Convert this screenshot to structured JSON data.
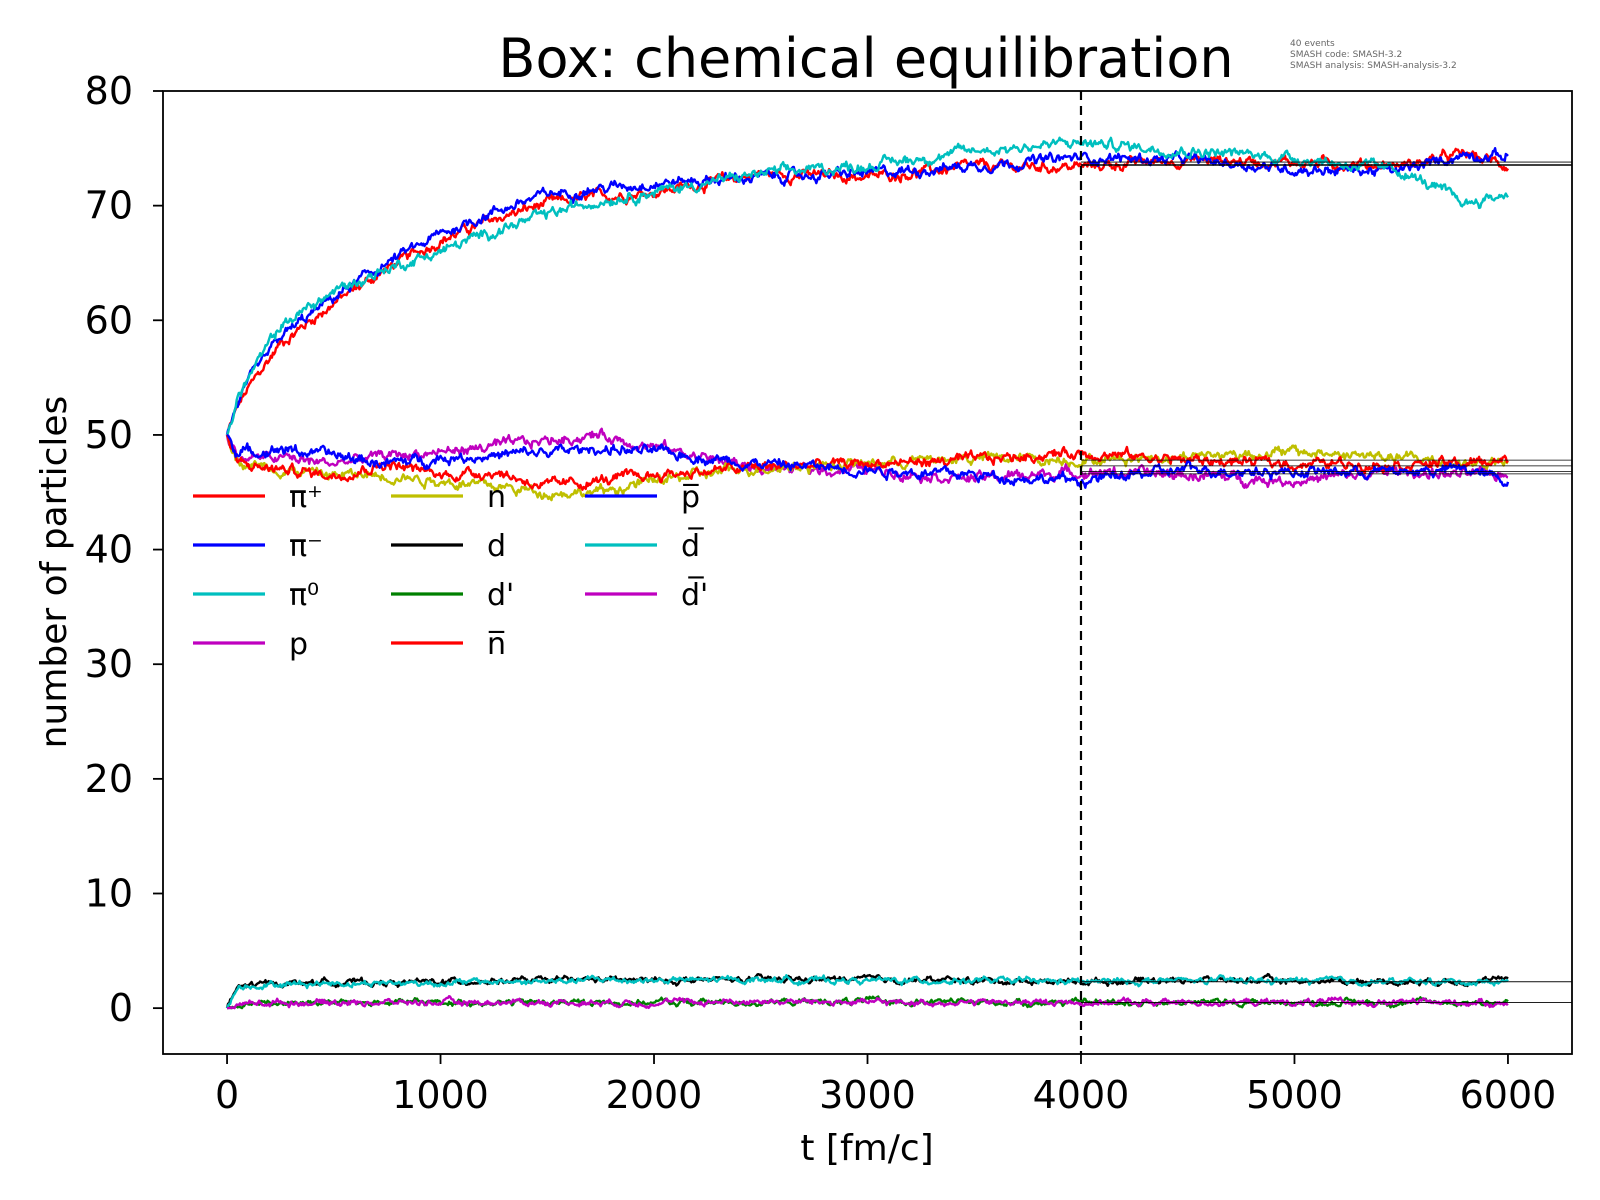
{
  "chart_data": {
    "type": "line",
    "title": "Box: chemical equilibration",
    "xlabel": "t [fm/c]",
    "ylabel": "number of particles",
    "xlim": [
      -300,
      6300
    ],
    "ylim": [
      -4,
      80
    ],
    "xticks": [
      "0",
      "1000",
      "2000",
      "3000",
      "4000",
      "5000",
      "6000"
    ],
    "yticks": [
      "0",
      "10",
      "20",
      "30",
      "40",
      "50",
      "60",
      "70",
      "80"
    ],
    "grid": false,
    "legend_placement": "center-left",
    "vline": {
      "x": 4000,
      "style": "dashed",
      "color": "#000000"
    },
    "metadata_lines": [
      "40 events",
      "SMASH code:      SMASH-3.2",
      "SMASH analysis:  SMASH-analysis-3.2"
    ],
    "x": [
      0,
      50,
      100,
      250,
      500,
      750,
      1000,
      1250,
      1500,
      1750,
      2000,
      2500,
      3000,
      3500,
      4000,
      4500,
      5000,
      5500,
      5800,
      6000
    ],
    "series": [
      {
        "name": "π⁺",
        "color": "#ff0000",
        "equilibrium": 73.6,
        "values": [
          50,
          52.5,
          54,
          58,
          61.5,
          64.5,
          67,
          68.8,
          70.2,
          70.8,
          71.2,
          72.8,
          72.5,
          73.4,
          73.4,
          74.0,
          73.8,
          73.5,
          74.5,
          73.5
        ]
      },
      {
        "name": "π⁻",
        "color": "#0000ff",
        "equilibrium": 73.8,
        "values": [
          50,
          52.8,
          54.5,
          58.5,
          62,
          65,
          67.5,
          69.5,
          71.0,
          71.5,
          72.0,
          72.5,
          72.8,
          73.5,
          74.2,
          74.0,
          73.2,
          73.0,
          74.5,
          74.3
        ]
      },
      {
        "name": "π⁰",
        "color": "#00bfbf",
        "equilibrium": 73.5,
        "values": [
          50,
          53.2,
          55,
          59.5,
          62.5,
          64.5,
          66,
          67.8,
          69.2,
          70.5,
          71.2,
          72.8,
          73.5,
          74.8,
          75.5,
          74.8,
          74.2,
          73.0,
          70.2,
          71.0
        ]
      },
      {
        "name": "p",
        "color": "#bf00bf",
        "equilibrium": 46.6,
        "values": [
          50,
          48.0,
          48.0,
          48.0,
          47.5,
          48.2,
          48.5,
          49.0,
          49.5,
          50.0,
          49.0,
          47.0,
          47.0,
          46.2,
          46.8,
          46.5,
          46.0,
          46.8,
          46.5,
          46.5
        ]
      },
      {
        "name": "n",
        "color": "#bfbf00",
        "equilibrium": 47.8,
        "values": [
          50,
          47.8,
          47.5,
          47.0,
          46.5,
          46.5,
          46.0,
          45.5,
          45.0,
          45.0,
          46.0,
          47.2,
          47.5,
          48.0,
          47.8,
          48.2,
          48.5,
          48.0,
          47.5,
          47.5
        ]
      },
      {
        "name": "d",
        "color": "#000000",
        "equilibrium": 2.3,
        "values": [
          0,
          1.8,
          2.0,
          2.2,
          2.3,
          2.2,
          2.3,
          2.4,
          2.4,
          2.5,
          2.4,
          2.5,
          2.5,
          2.4,
          2.3,
          2.5,
          2.4,
          2.3,
          2.4,
          2.4
        ]
      },
      {
        "name": "d'",
        "color": "#008000",
        "equilibrium": 0.5,
        "values": [
          0,
          0.3,
          0.4,
          0.5,
          0.5,
          0.5,
          0.5,
          0.5,
          0.5,
          0.5,
          0.5,
          0.5,
          0.6,
          0.5,
          0.5,
          0.5,
          0.5,
          0.5,
          0.5,
          0.5
        ]
      },
      {
        "name": "n̅",
        "color": "#ff0000",
        "equilibrium": 47.3,
        "values": [
          50,
          47.5,
          47.3,
          47.0,
          46.5,
          47.5,
          46.5,
          46.8,
          45.5,
          46.0,
          46.5,
          47.2,
          47.5,
          47.8,
          48.5,
          47.8,
          47.5,
          47.5,
          47.5,
          47.8
        ]
      },
      {
        "name": "p̅",
        "color": "#0000ff",
        "equilibrium": 46.8,
        "values": [
          50,
          48.5,
          48.5,
          48.8,
          48.2,
          47.5,
          48.0,
          48.2,
          48.5,
          48.8,
          48.5,
          47.5,
          47.0,
          46.5,
          46.0,
          47.0,
          46.8,
          46.8,
          47.0,
          46.0
        ]
      },
      {
        "name": "d̅",
        "color": "#00bfbf",
        "equilibrium": 2.3,
        "values": [
          0,
          1.8,
          2.0,
          2.1,
          2.2,
          2.2,
          2.2,
          2.3,
          2.3,
          2.5,
          2.4,
          2.5,
          2.4,
          2.4,
          2.3,
          2.4,
          2.4,
          2.3,
          2.3,
          2.3
        ]
      },
      {
        "name": "d̅'",
        "color": "#bf00bf",
        "equilibrium": 0.5,
        "values": [
          0,
          0.3,
          0.4,
          0.5,
          0.5,
          0.5,
          0.5,
          0.5,
          0.5,
          0.5,
          0.5,
          0.6,
          0.5,
          0.5,
          0.5,
          0.5,
          0.5,
          0.5,
          0.5,
          0.5
        ]
      }
    ]
  }
}
